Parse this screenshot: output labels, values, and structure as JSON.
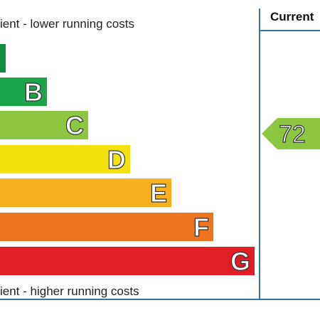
{
  "captions": {
    "top": "ient - lower running costs",
    "bottom": "ient - higher running costs"
  },
  "header": {
    "current": "Current"
  },
  "bands": [
    {
      "letter": "",
      "color": "#0d8c44"
    },
    {
      "letter": "B",
      "color": "#1ba54a"
    },
    {
      "letter": "C",
      "color": "#8dc641"
    },
    {
      "letter": "D",
      "color": "#f4e20e"
    },
    {
      "letter": "E",
      "color": "#f7b01c"
    },
    {
      "letter": "F",
      "color": "#ee7420"
    },
    {
      "letter": "G",
      "color": "#e31d25"
    }
  ],
  "current_rating": {
    "value": "72",
    "color": "#8dc641"
  }
}
